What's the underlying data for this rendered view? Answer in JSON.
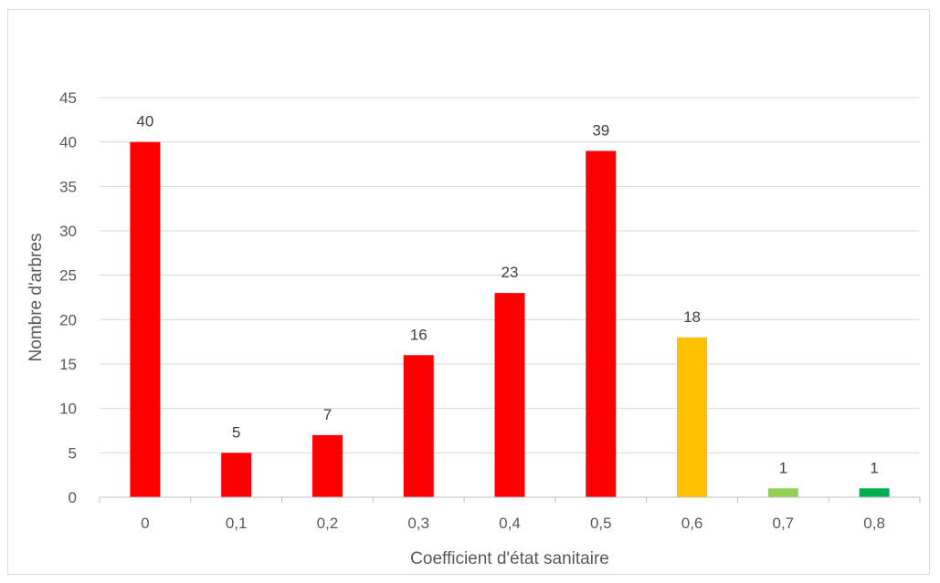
{
  "chart_data": {
    "type": "bar",
    "title": "",
    "xlabel": "Coefficient d'état sanitaire",
    "ylabel": "Nombre d'arbres",
    "categories": [
      "0",
      "0,1",
      "0,2",
      "0,3",
      "0,4",
      "0,5",
      "0,6",
      "0,7",
      "0,8"
    ],
    "values": [
      40,
      5,
      7,
      16,
      23,
      39,
      18,
      1,
      1
    ],
    "bar_colors": [
      "#ff0000",
      "#ff0000",
      "#ff0000",
      "#ff0000",
      "#ff0000",
      "#ff0000",
      "#ffc000",
      "#92d050",
      "#00b050"
    ],
    "ylim": [
      0,
      45
    ],
    "yticks": [
      0,
      5,
      10,
      15,
      20,
      25,
      30,
      35,
      40,
      45
    ],
    "ytick_labels": [
      "0",
      "5",
      "10",
      "15",
      "20",
      "25",
      "30",
      "35",
      "40",
      "45"
    ],
    "grid": "horizontal",
    "data_labels": true,
    "legend": "none",
    "colors": {
      "gridline": "#d9d9d9",
      "axis": "#bfbfbf",
      "tick_text": "#595959",
      "label_text": "#404040"
    }
  }
}
